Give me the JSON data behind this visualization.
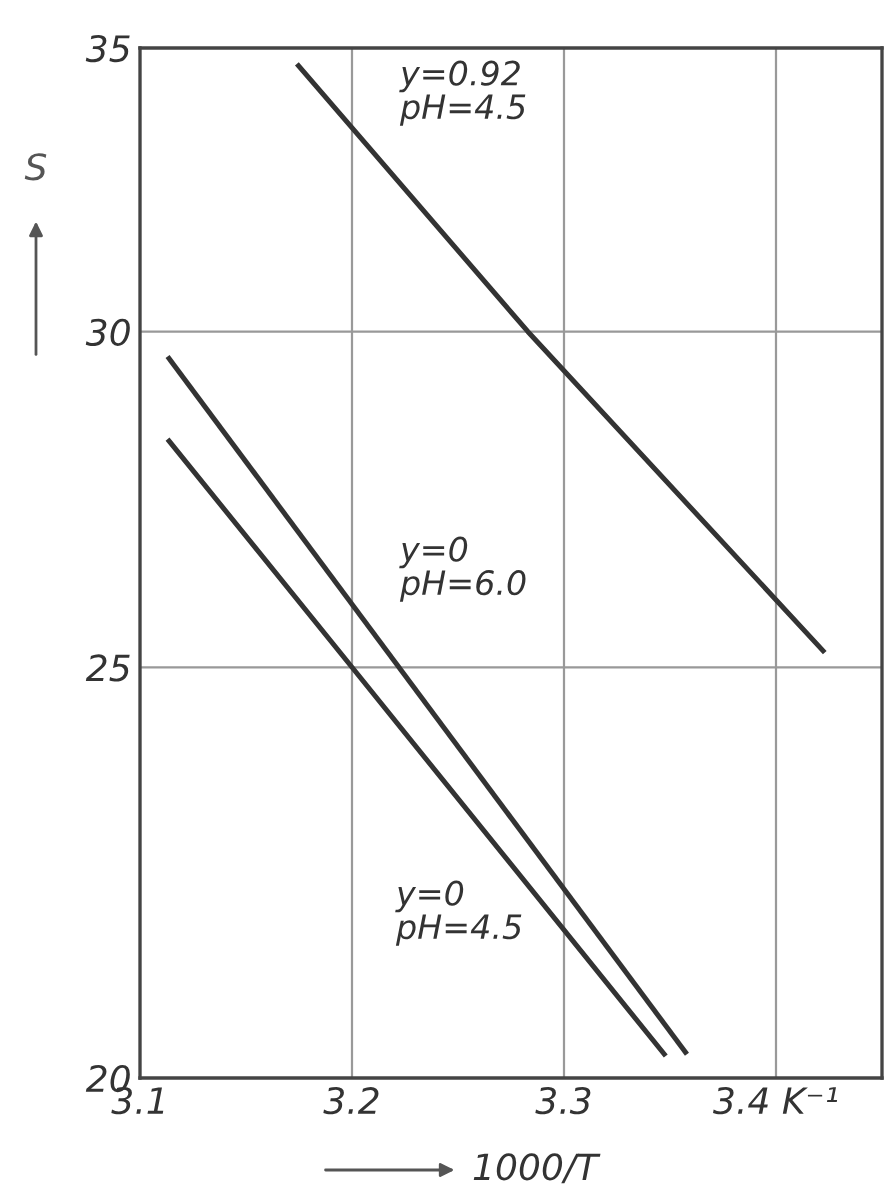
{
  "chart_data": {
    "type": "line",
    "xlabel": "1000/T",
    "ylabel": "S",
    "log": "y",
    "grid": true,
    "legend": false,
    "marker": "none",
    "line_style": "solid",
    "xlim": [
      3.1,
      3.45
    ],
    "xticks": [
      3.1,
      3.2,
      3.3,
      {
        "value": 3.4,
        "label": "3.4 K⁻¹"
      }
    ],
    "ylim": [
      20,
      35
    ],
    "yticks": [
      20,
      25,
      30,
      35
    ],
    "series": [
      {
        "color": "#333333",
        "x": [
          3.174,
          3.283,
          3.423
        ],
        "values": [
          34.7,
          30,
          25.2
        ]
      },
      {
        "color": "#333333",
        "x": [
          3.113,
          3.358
        ],
        "values": [
          29.6,
          20.26
        ]
      },
      {
        "color": "#333333",
        "x": [
          3.113,
          3.2,
          3.348
        ],
        "values": [
          28.3,
          25,
          20.24
        ]
      }
    ],
    "annotations": [
      "y=0.92\npH=4.5",
      "y=0\npH=6.0",
      "y=0\npH=4.5"
    ]
  }
}
